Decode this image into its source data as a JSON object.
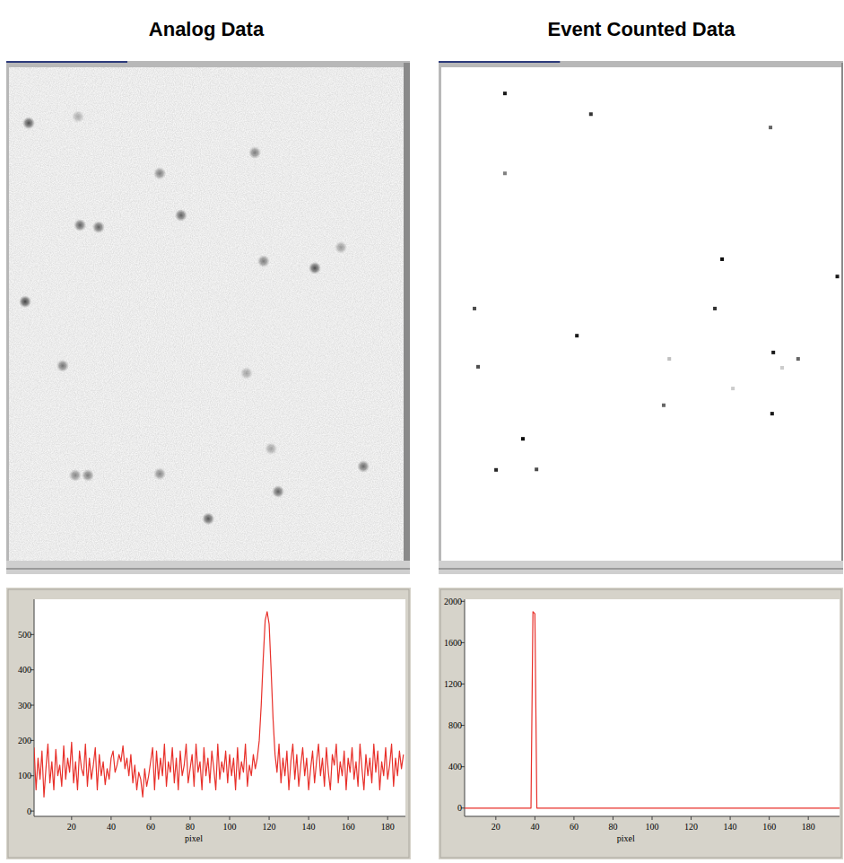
{
  "chart_data": [
    {
      "type": "scatter",
      "title": "Analog Data",
      "marker": "blur",
      "tick_labels": false,
      "xlim": [
        0,
        100
      ],
      "ylim": [
        100,
        0
      ],
      "x": [
        5.0,
        17.5,
        38.2,
        62.3,
        18.0,
        22.7,
        43.6,
        84.1,
        64.5,
        77.5,
        4.1,
        13.6,
        60.2,
        66.4,
        16.8,
        20.0,
        38.2,
        89.8,
        68.2,
        50.5
      ],
      "y": [
        11.3,
        10.0,
        21.5,
        17.3,
        32.0,
        32.4,
        30.0,
        36.5,
        39.3,
        40.7,
        47.5,
        60.5,
        62.0,
        77.3,
        82.7,
        82.7,
        82.4,
        80.9,
        86.0,
        91.5
      ],
      "intensity": [
        0.85,
        0.35,
        0.6,
        0.6,
        0.75,
        0.75,
        0.75,
        0.45,
        0.6,
        0.85,
        0.9,
        0.65,
        0.4,
        0.4,
        0.55,
        0.6,
        0.55,
        0.7,
        0.75,
        0.8
      ]
    },
    {
      "type": "scatter",
      "title": "Event Counted Data",
      "marker": "square",
      "tick_labels": false,
      "xlim": [
        0,
        100
      ],
      "ylim": [
        100,
        0
      ],
      "x": [
        15.9,
        37.4,
        82.3,
        15.9,
        70.2,
        99.0,
        8.3,
        68.4,
        33.9,
        9.2,
        57.0,
        83.0,
        89.2,
        85.2,
        72.9,
        55.6,
        82.7,
        20.4,
        13.7,
        23.8
      ],
      "y": [
        5.3,
        9.5,
        12.2,
        21.5,
        38.9,
        42.4,
        48.9,
        48.9,
        54.4,
        60.7,
        59.1,
        57.8,
        59.1,
        60.9,
        65.1,
        68.5,
        70.2,
        75.3,
        81.6,
        81.5
      ],
      "intensity": [
        0.9,
        0.8,
        0.6,
        0.5,
        0.95,
        0.9,
        0.7,
        0.8,
        0.9,
        0.7,
        0.25,
        0.9,
        0.6,
        0.2,
        0.2,
        0.6,
        0.9,
        0.95,
        0.85,
        0.7
      ]
    },
    {
      "type": "line",
      "x_label": "pixel",
      "color": "#e8302a",
      "grid": false,
      "xlim": [
        1,
        189
      ],
      "ylim": [
        -15,
        600
      ],
      "xticks": [
        20,
        40,
        60,
        80,
        100,
        120,
        140,
        160,
        180
      ],
      "yticks": [
        0,
        100,
        200,
        300,
        400,
        500
      ],
      "x": [
        1,
        2,
        3,
        4,
        5,
        6,
        7,
        8,
        9,
        10,
        11,
        12,
        13,
        14,
        15,
        16,
        17,
        18,
        19,
        20,
        21,
        22,
        23,
        24,
        25,
        26,
        27,
        28,
        29,
        30,
        31,
        32,
        33,
        34,
        35,
        36,
        37,
        38,
        39,
        40,
        41,
        42,
        43,
        44,
        45,
        46,
        47,
        48,
        49,
        50,
        51,
        52,
        53,
        54,
        55,
        56,
        57,
        58,
        59,
        60,
        61,
        62,
        63,
        64,
        65,
        66,
        67,
        68,
        69,
        70,
        71,
        72,
        73,
        74,
        75,
        76,
        77,
        78,
        79,
        80,
        81,
        82,
        83,
        84,
        85,
        86,
        87,
        88,
        89,
        90,
        91,
        92,
        93,
        94,
        95,
        96,
        97,
        98,
        99,
        100,
        101,
        102,
        103,
        104,
        105,
        106,
        107,
        108,
        109,
        110,
        111,
        112,
        113,
        114,
        115,
        116,
        117,
        118,
        119,
        120,
        121,
        122,
        123,
        124,
        125,
        126,
        127,
        128,
        129,
        130,
        131,
        132,
        133,
        134,
        135,
        136,
        137,
        138,
        139,
        140,
        141,
        142,
        143,
        144,
        145,
        146,
        147,
        148,
        149,
        150,
        151,
        152,
        153,
        154,
        155,
        156,
        157,
        158,
        159,
        160,
        161,
        162,
        163,
        164,
        165,
        166,
        167,
        168,
        169,
        170,
        171,
        172,
        173,
        174,
        175,
        176,
        177,
        178,
        179,
        180,
        181,
        182,
        183,
        184,
        185,
        186,
        187,
        188
      ],
      "values": [
        180,
        60,
        150,
        90,
        170,
        40,
        120,
        190,
        80,
        140,
        60,
        175,
        100,
        130,
        70,
        185,
        90,
        150,
        110,
        195,
        80,
        140,
        60,
        170,
        120,
        100,
        190,
        70,
        150,
        90,
        130,
        180,
        60,
        160,
        100,
        140,
        75,
        120,
        90,
        150,
        170,
        110,
        130,
        160,
        140,
        185,
        120,
        150,
        100,
        160,
        80,
        130,
        60,
        110,
        90,
        40,
        120,
        70,
        100,
        140,
        180,
        60,
        170,
        90,
        150,
        100,
        190,
        70,
        140,
        110,
        180,
        80,
        150,
        60,
        170,
        100,
        130,
        190,
        80,
        120,
        160,
        70,
        190,
        110,
        140,
        60,
        180,
        100,
        150,
        80,
        170,
        120,
        60,
        190,
        90,
        140,
        110,
        170,
        80,
        160,
        100,
        150,
        60,
        180,
        90,
        140,
        110,
        190,
        70,
        130,
        100,
        160,
        120,
        150,
        200,
        300,
        430,
        540,
        565,
        530,
        400,
        260,
        160,
        110,
        190,
        80,
        150,
        100,
        170,
        60,
        140,
        190,
        90,
        160,
        70,
        130,
        180,
        100,
        150,
        60,
        120,
        170,
        80,
        140,
        190,
        100,
        150,
        70,
        180,
        110,
        60,
        160,
        130,
        190,
        80,
        140,
        100,
        170,
        60,
        150,
        110,
        180,
        90,
        140,
        70,
        190,
        120,
        60,
        160,
        100,
        150,
        80,
        190,
        110,
        170,
        60,
        140,
        100,
        180,
        90,
        130,
        190,
        70,
        150,
        100,
        170,
        120,
        160
      ]
    },
    {
      "type": "line",
      "x_label": "pixel",
      "color": "#e8302a",
      "grid": false,
      "xlim": [
        4,
        196
      ],
      "ylim": [
        -80,
        2020
      ],
      "xticks": [
        20,
        40,
        60,
        80,
        100,
        120,
        140,
        160,
        180
      ],
      "yticks": [
        0,
        400,
        800,
        1200,
        1600,
        2000
      ],
      "x": [
        4,
        38,
        39,
        40,
        41,
        196
      ],
      "values": [
        0,
        0,
        1900,
        1880,
        0,
        0
      ]
    }
  ]
}
